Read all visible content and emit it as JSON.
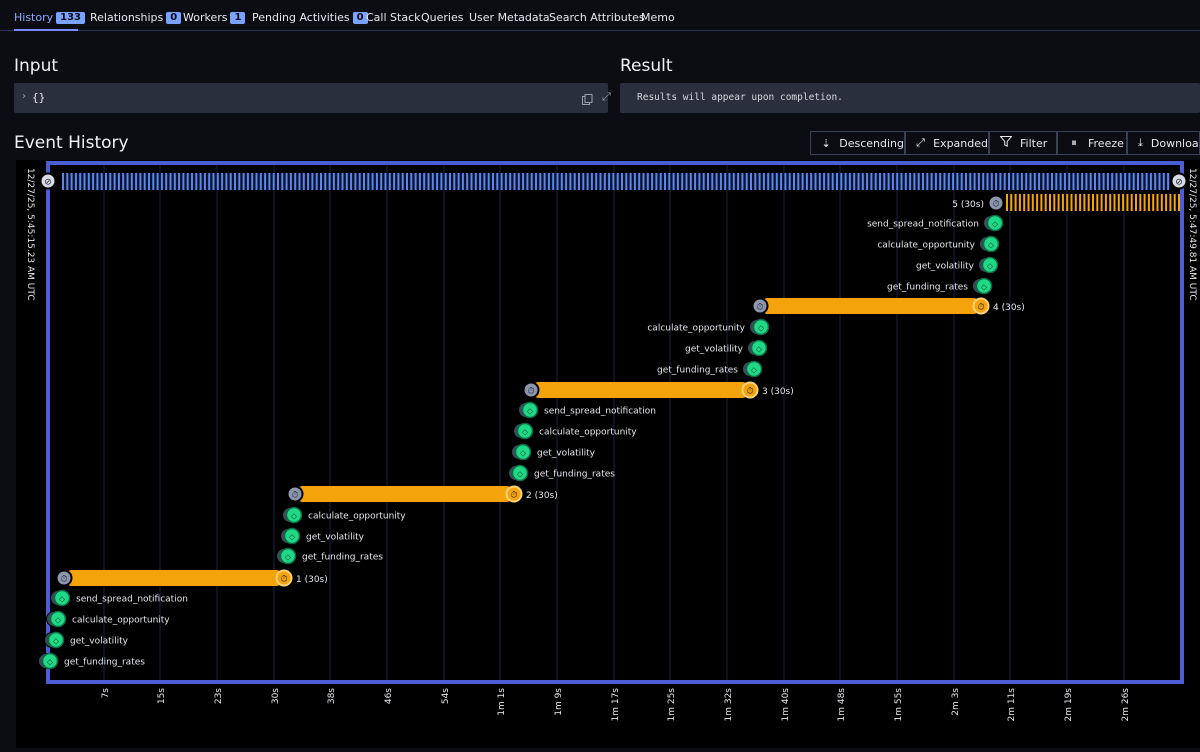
{
  "tabs": [
    {
      "label": "History",
      "badge": "133"
    },
    {
      "label": "Relationships",
      "badge": "0"
    },
    {
      "label": "Workers",
      "badge": "1"
    },
    {
      "label": "Pending Activities",
      "badge": "0"
    },
    {
      "label": "Call Stack"
    },
    {
      "label": "Queries"
    },
    {
      "label": "User Metadata"
    },
    {
      "label": "Search Attributes"
    },
    {
      "label": "Memo"
    }
  ],
  "input": {
    "title": "Input",
    "value": "{}"
  },
  "result": {
    "title": "Result",
    "placeholder": "Results will appear upon completion."
  },
  "event_history": {
    "title": "Event History",
    "buttons": [
      {
        "label": "Descending",
        "icon": "sort-descending-icon"
      },
      {
        "label": "Expanded",
        "icon": "expand-icon"
      },
      {
        "label": "Filter",
        "icon": "filter-icon"
      },
      {
        "label": "Freeze",
        "icon": "pause-icon"
      },
      {
        "label": "Download",
        "icon": "download-icon"
      }
    ]
  },
  "timeline": {
    "start_label": "12/27/25, 5:45:15.23 AM UTC",
    "end_label": "12/27/25, 5:47:49.81 AM UTC",
    "ticks": [
      "7s",
      "15s",
      "23s",
      "30s",
      "38s",
      "46s",
      "54s",
      "1m 1s",
      "1m 9s",
      "1m 17s",
      "1m 25s",
      "1m 32s",
      "1m 40s",
      "1m 48s",
      "1m 55s",
      "2m 3s",
      "2m 11s",
      "2m 19s",
      "2m 26s"
    ],
    "timers": [
      {
        "label": "1 (30s)"
      },
      {
        "label": "2 (30s)"
      },
      {
        "label": "3 (30s)"
      },
      {
        "label": "4 (30s)"
      },
      {
        "label": "5 (30s)"
      }
    ],
    "activities": [
      {
        "label": "get_funding_rates"
      },
      {
        "label": "get_volatility"
      },
      {
        "label": "calculate_opportunity"
      },
      {
        "label": "send_spread_notification"
      },
      {
        "label": "get_funding_rates"
      },
      {
        "label": "get_volatility"
      },
      {
        "label": "calculate_opportunity"
      },
      {
        "label": "get_funding_rates"
      },
      {
        "label": "get_volatility"
      },
      {
        "label": "calculate_opportunity"
      },
      {
        "label": "send_spread_notification"
      },
      {
        "label": "get_funding_rates"
      },
      {
        "label": "get_volatility"
      },
      {
        "label": "calculate_opportunity"
      },
      {
        "label": "get_funding_rates"
      },
      {
        "label": "get_volatility"
      },
      {
        "label": "calculate_opportunity"
      },
      {
        "label": "send_spread_notification"
      }
    ],
    "colors": {
      "workflow": "#4a5fd6",
      "timer": "#f5a30b",
      "activity": "#1fd987",
      "grid": "#1c2046"
    }
  }
}
